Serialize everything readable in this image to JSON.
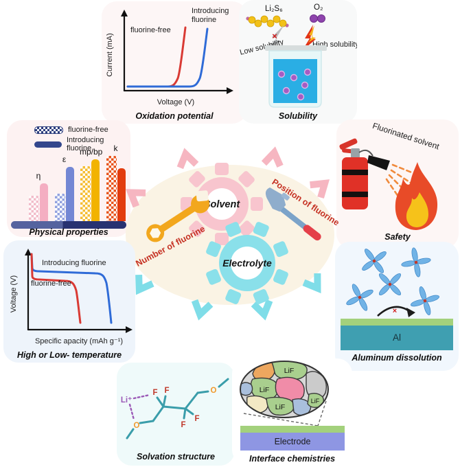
{
  "center": {
    "solvent": "Solvent",
    "electrolyte": "Electrolyte",
    "number_of_fluorine": "Number of fluorine",
    "position_of_fluorine": "Position of fluorine"
  },
  "solubility": {
    "title": "Solubility",
    "li2s6": "Li₂S₆",
    "o2": "O₂",
    "low": "Low solubility",
    "high": "High solubility",
    "blocked_mark": "×"
  },
  "safety": {
    "title": "Safety",
    "spray_label": "Fluorinated solvent"
  },
  "aluminum": {
    "title": "Aluminum dissolution",
    "al_label": "Al",
    "blocked_mark": "×"
  },
  "solvation": {
    "title": "Solvation structure",
    "li": "Li⁺",
    "f": "F",
    "o": "O"
  },
  "interface": {
    "title": "Interface chemistries",
    "grain_label": "LiF",
    "electrode_label": "Electrode"
  },
  "chart_data": [
    {
      "id": "physical-properties",
      "type": "bar",
      "title": "Physical properties",
      "categories": [
        "η",
        "ε",
        "mp/bp",
        "k"
      ],
      "series": [
        {
          "name": "fluorine-free",
          "pattern": "checkered",
          "values": [
            39,
            42,
            84,
            100
          ]
        },
        {
          "name": "Introducing fluorine",
          "pattern": "solid",
          "values": [
            58,
            83,
            95,
            81
          ]
        }
      ],
      "value_note": "relative qualitative heights, scale 0-100",
      "bar_colors": {
        "checkered": [
          "#f2bcca",
          "#93a2df",
          "#f5bd33",
          "#e8541c"
        ],
        "solid": [
          "#f4aec2",
          "#7387d4",
          "#f2b300",
          "#e23c0e"
        ]
      },
      "legend_position": "top-left",
      "grid": false
    },
    {
      "id": "oxidation-potential",
      "type": "line",
      "title": "Oxidation potential",
      "xlabel": "Voltage (V)",
      "ylabel": "Current (mA)",
      "series": [
        {
          "name": "fluorine-free",
          "color": "#d93a34",
          "points": [
            [
              0,
              0
            ],
            [
              0.45,
              0
            ],
            [
              0.52,
              0.08
            ],
            [
              0.6,
              0.95
            ]
          ]
        },
        {
          "name": "Introducing fluorine",
          "color": "#2f6bd7",
          "points": [
            [
              0,
              0
            ],
            [
              0.68,
              0
            ],
            [
              0.75,
              0.08
            ],
            [
              0.83,
              0.95
            ]
          ]
        }
      ],
      "grid": false
    },
    {
      "id": "temperature-discharge",
      "type": "line",
      "title": "High or Low- temperature",
      "xlabel": "Specific apacity (mAh g⁻¹)",
      "ylabel": "Voltage (V)",
      "series": [
        {
          "name": "Introducing fluorine",
          "color": "#2f6bd7",
          "points": [
            [
              0,
              0.95
            ],
            [
              0.01,
              0.8
            ],
            [
              0.78,
              0.78
            ],
            [
              0.84,
              0.6
            ],
            [
              0.88,
              0.05
            ]
          ]
        },
        {
          "name": "fluorine-free",
          "color": "#d93a34",
          "points": [
            [
              0,
              0.95
            ],
            [
              0.01,
              0.72
            ],
            [
              0.45,
              0.7
            ],
            [
              0.52,
              0.55
            ],
            [
              0.56,
              0.05
            ]
          ]
        }
      ],
      "grid": false
    }
  ],
  "colors": {
    "curve_red": "#d93a34",
    "curve_blue": "#2f6bd7",
    "legend_navy": "#2e3f7e",
    "gear_pink": "#f8c5ce",
    "gear_cyan": "#8ae0ea",
    "ellipse_cream": "#faf3e4",
    "accent_red_text": "#c53022",
    "wrench_orange": "#f2a71d",
    "hammer_steel_blue": "#8fadcc",
    "hammer_grip_red": "#e4404a",
    "extinguisher_red": "#e03127",
    "flame_orange": "#e84b28",
    "flame_yellow": "#f6c21a",
    "beaker_liquid_blue": "#2aaee4",
    "solute_purple": "#a55cc2",
    "al_teal": "#3f9fb1",
    "surface_green": "#a3d17c",
    "electrode_purple": "#8e96e3",
    "bond_teal": "#3a9daa",
    "fluorine_red": "#c0392b",
    "oxygen_orange": "#f09a2e",
    "lithium_purple": "#9b59b6"
  },
  "icons": {
    "solvent_gear": "gear-icon",
    "electrolyte_gear": "gear-icon",
    "wrench": "wrench-icon",
    "hammer": "hammer-icon",
    "fire_extinguisher": "fire-extinguisher-icon",
    "flame": "flame-icon",
    "beaker": "beaker-icon",
    "lightning_blocked": "crossed-lightning-icon",
    "lightning": "lightning-icon",
    "sulfur_chain": "sulfur-chain-icon",
    "oxygen_molecule": "oxygen-molecule-icon",
    "solvent_pinwheel": "solvent-molecule-icon",
    "chevrons": "chevron-icons"
  }
}
